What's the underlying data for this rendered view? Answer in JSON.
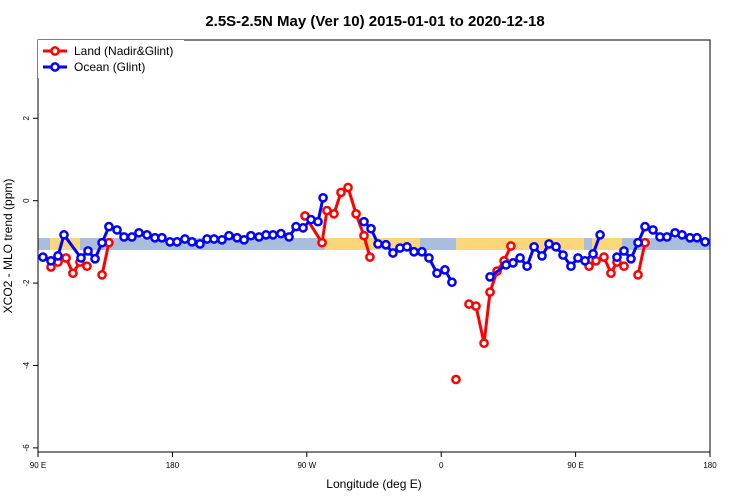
{
  "chart_data": {
    "type": "line",
    "title": "2.5S-2.5N May (Ver 10)   2015-01-01 to 2020-12-18",
    "xlabel": "Longitude (deg E)",
    "ylabel": "XCO2 - MLO trend (ppm)",
    "xlim": [
      90,
      540
    ],
    "ylim": [
      -6.1,
      3.9
    ],
    "xticks": [
      {
        "value": 90,
        "label": "90 E"
      },
      180,
      {
        "value": 270,
        "label": "90 W"
      },
      {
        "value": 360,
        "label": "0"
      },
      {
        "value": 450,
        "label": "90 E"
      },
      {
        "value": 540,
        "label": "180"
      }
    ],
    "yticks": [
      -6,
      -4,
      -2,
      0,
      2
    ],
    "legend": "top-left",
    "series": [
      {
        "name": "Land (Nadir&Glint)",
        "color": "#ff0000",
        "x": [
          98.7,
          103.4,
          108.8,
          113.4,
          118.1,
          122.8,
          null,
          132.9,
          137.5,
          null,
          268.8,
          280.2,
          283.5,
          288.2,
          292.9,
          297.6,
          303.0,
          308.3,
          312.3,
          null,
          369.9,
          null,
          378.6,
          383.3,
          388.7,
          392.7,
          397.4,
          402.1,
          406.7,
          null,
          459.0,
          463.7,
          469.0,
          473.7,
          477.7,
          482.4,
          null,
          491.8,
          496.5
        ],
        "values": [
          -1.61,
          -1.49,
          -1.39,
          -1.76,
          -1.49,
          -1.59,
          null,
          -1.8,
          -1.02,
          null,
          -0.37,
          -1.02,
          -0.24,
          -0.32,
          0.2,
          0.32,
          -0.32,
          -0.85,
          -1.37,
          null,
          -4.34,
          null,
          -2.51,
          -2.56,
          -3.46,
          -2.22,
          -1.71,
          -1.46,
          -1.1,
          null,
          -1.59,
          -1.46,
          -1.37,
          -1.76,
          -1.49,
          -1.59,
          null,
          -1.8,
          -1.02
        ]
      },
      {
        "name": "Ocean (Glint)",
        "color": "#0000ff",
        "x": [
          93.3,
          98.7,
          103.4,
          107.4,
          118.8,
          123.5,
          128.2,
          132.9,
          137.5,
          142.9,
          147.6,
          152.9,
          157.6,
          163.0,
          168.3,
          173.0,
          178.4,
          183.1,
          188.4,
          193.1,
          198.5,
          203.2,
          207.9,
          213.2,
          217.9,
          223.3,
          228.0,
          232.6,
          238.0,
          242.7,
          247.4,
          252.7,
          258.1,
          262.8,
          267.5,
          272.8,
          277.5,
          280.9,
          null,
          308.3,
          313.0,
          317.7,
          323.0,
          327.7,
          332.4,
          337.1,
          341.8,
          347.1,
          351.8,
          357.2,
          362.5,
          367.2,
          null,
          392.7,
          403.4,
          408.1,
          412.8,
          417.5,
          422.2,
          427.5,
          432.2,
          436.9,
          441.6,
          446.9,
          451.6,
          456.3,
          461.7,
          466.4,
          null,
          477.7,
          482.4,
          487.1,
          491.8,
          496.5,
          501.8,
          506.5,
          511.2,
          516.6,
          521.3,
          526.6,
          531.3,
          536.7
        ],
        "values": [
          -1.37,
          -1.46,
          -1.34,
          -0.83,
          -1.39,
          -1.22,
          -1.41,
          -1.02,
          -0.63,
          -0.71,
          -0.88,
          -0.88,
          -0.78,
          -0.83,
          -0.9,
          -0.9,
          -1.0,
          -1.0,
          -0.93,
          -1.0,
          -1.05,
          -0.93,
          -0.93,
          -0.95,
          -0.85,
          -0.9,
          -0.95,
          -0.85,
          -0.88,
          -0.83,
          -0.83,
          -0.8,
          -0.88,
          -0.63,
          -0.66,
          -0.46,
          -0.51,
          0.07,
          null,
          -0.51,
          -0.68,
          -1.05,
          -1.07,
          -1.27,
          -1.15,
          -1.12,
          -1.24,
          -1.24,
          -1.39,
          -1.76,
          -1.68,
          -1.98,
          null,
          -1.85,
          -1.56,
          -1.51,
          -1.39,
          -1.59,
          -1.12,
          -1.34,
          -1.05,
          -1.12,
          -1.32,
          -1.59,
          -1.39,
          -1.46,
          -1.29,
          -0.83,
          null,
          -1.37,
          -1.22,
          -1.41,
          -1.02,
          -0.63,
          -0.71,
          -0.88,
          -0.88,
          -0.78,
          -0.83,
          -0.9,
          -0.9,
          -1.0
        ]
      }
    ]
  }
}
